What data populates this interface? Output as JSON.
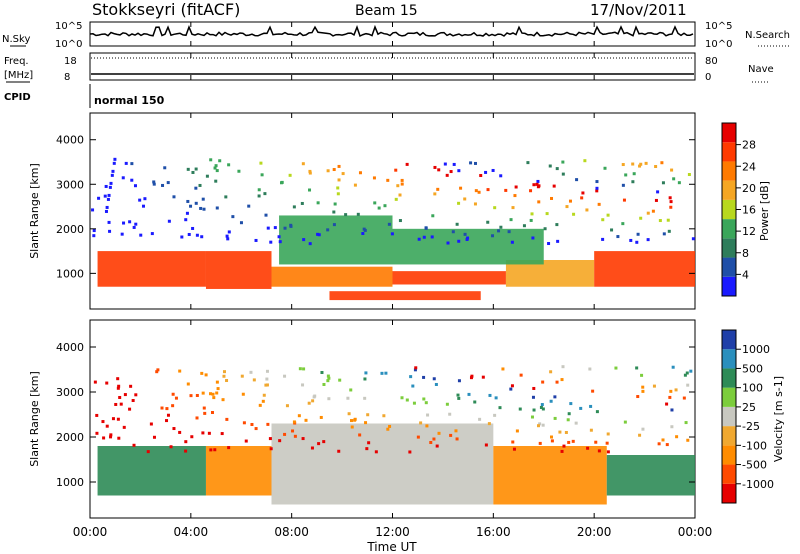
{
  "header": {
    "site": "Stokkseyri (fitACF)",
    "beam": "Beam 15",
    "date": "17/Nov/2011"
  },
  "noise_panel": {
    "left_label": "N.Sky",
    "right_label": "N.Search",
    "ticks": [
      "10^5",
      "10^0"
    ],
    "right_ticks": [
      "10^5",
      "10^0"
    ]
  },
  "freq_panel": {
    "left_label_1": "Freq.",
    "left_label_2": "[MHz]",
    "left_ticks": [
      "18",
      "8"
    ],
    "right_label": "Nave",
    "right_ticks": [
      "80",
      "0"
    ]
  },
  "cpid_panel": {
    "label": "CPID",
    "mode": "normal 150"
  },
  "time_axis": {
    "title": "Time UT",
    "ticks": [
      "00:00",
      "04:00",
      "08:00",
      "12:00",
      "16:00",
      "20:00",
      "00:00"
    ]
  },
  "colors": {
    "power": [
      "#1a1aff",
      "#1f4fa8",
      "#2e7d5b",
      "#3aa65a",
      "#b8d81e",
      "#f5a623",
      "#ff7a00",
      "#ff3a00",
      "#e60000"
    ],
    "velocity": [
      "#e60000",
      "#ff4a00",
      "#ff8c00",
      "#f0a830",
      "#c8c8c0",
      "#7ccd3c",
      "#2e8b57",
      "#2a8fbd",
      "#1f3fa8"
    ]
  },
  "chart_data": [
    {
      "type": "heatmap",
      "name": "power",
      "ylabel": "Slant Range [km]",
      "ylim": [
        200,
        4600
      ],
      "yticks": [
        1000,
        2000,
        3000,
        4000
      ],
      "xlabel": "Time UT",
      "xlim": [
        0,
        24
      ],
      "colorbar_label": "Power [dB]",
      "colorbar_ticks": [
        "28",
        "24",
        "20",
        "16",
        "12",
        "8",
        "4"
      ],
      "regions": [
        {
          "t0": 0.3,
          "t1": 4.6,
          "r0": 700,
          "r1": 1500,
          "value": 28
        },
        {
          "t0": 4.6,
          "t1": 7.2,
          "r0": 650,
          "r1": 1500,
          "value": 26
        },
        {
          "t0": 7.2,
          "t1": 12.0,
          "r0": 700,
          "r1": 1150,
          "value": 22
        },
        {
          "t0": 12.0,
          "t1": 16.5,
          "r0": 750,
          "r1": 1050,
          "value": 26
        },
        {
          "t0": 16.5,
          "t1": 20.0,
          "r0": 700,
          "r1": 1300,
          "value": 20
        },
        {
          "t0": 20.0,
          "t1": 24.0,
          "r0": 700,
          "r1": 1500,
          "value": 26
        },
        {
          "t0": 9.5,
          "t1": 15.5,
          "r0": 400,
          "r1": 600,
          "value": 28
        },
        {
          "t0": 7.5,
          "t1": 12.0,
          "r0": 1200,
          "r1": 2300,
          "value": 14
        },
        {
          "t0": 12.0,
          "t1": 18.0,
          "r0": 1200,
          "r1": 2000,
          "value": 12
        }
      ]
    },
    {
      "type": "heatmap",
      "name": "velocity",
      "ylabel": "Slant Range [km]",
      "ylim": [
        200,
        4600
      ],
      "yticks": [
        1000,
        2000,
        3000,
        4000
      ],
      "xlabel": "Time UT",
      "xlim": [
        0,
        24
      ],
      "colorbar_label": "Velocity [m s-1]",
      "colorbar_ticks": [
        "1000",
        "500",
        "100",
        "25",
        "-25",
        "-100",
        "-500",
        "-1000"
      ],
      "regions": [
        {
          "t0": 0.3,
          "t1": 4.6,
          "r0": 700,
          "r1": 1800,
          "value": 200
        },
        {
          "t0": 4.6,
          "t1": 7.2,
          "r0": 700,
          "r1": 1800,
          "value": -200
        },
        {
          "t0": 7.2,
          "t1": 16.0,
          "r0": 500,
          "r1": 2300,
          "value": 0
        },
        {
          "t0": 16.0,
          "t1": 20.5,
          "r0": 500,
          "r1": 1800,
          "value": -200
        },
        {
          "t0": 20.5,
          "t1": 24.0,
          "r0": 700,
          "r1": 1600,
          "value": 200
        }
      ]
    }
  ]
}
